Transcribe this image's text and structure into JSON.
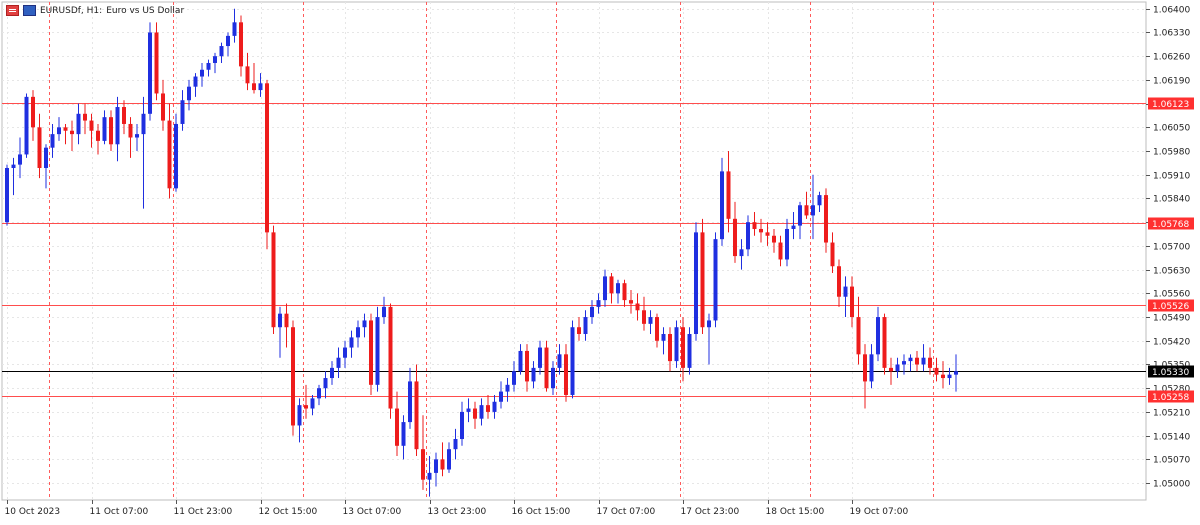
{
  "title": {
    "symbol": "EURUSDf, H1:",
    "description": "Euro vs US Dollar"
  },
  "colors": {
    "bull": "#1f2fe0",
    "bear": "#ee1c1c",
    "doji": "#1ab01a",
    "grid": "#e6e6e6",
    "separator": "#ff5a5a",
    "hline": "#ff4d4d",
    "current": "#000000"
  },
  "chart_data": {
    "type": "candlestick",
    "ylim": [
      1.0495,
      1.0642
    ],
    "y_ticks": [
      "1.06400",
      "1.06330",
      "1.06260",
      "1.06190",
      "1.06120",
      "1.06050",
      "1.05980",
      "1.05910",
      "1.05840",
      "1.05770",
      "1.05700",
      "1.05630",
      "1.05560",
      "1.05490",
      "1.05420",
      "1.05350",
      "1.05280",
      "1.05210",
      "1.05140",
      "1.05070",
      "1.05000"
    ],
    "x_labels": [
      "10 Oct 2023",
      "11 Oct 07:00",
      "11 Oct 23:00",
      "12 Oct 15:00",
      "13 Oct 07:00",
      "13 Oct 23:00",
      "16 Oct 15:00",
      "17 Oct 07:00",
      "17 Oct 23:00",
      "18 Oct 15:00",
      "19 Oct 07:00"
    ],
    "x_label_bars": [
      0,
      13,
      26,
      39,
      52,
      65,
      78,
      91,
      104,
      117,
      130
    ],
    "separator_bars": [
      7,
      26,
      46,
      65,
      85,
      104,
      124,
      143
    ],
    "horizontal_lines": [
      {
        "price": 1.06123,
        "label": "1.06123"
      },
      {
        "price": 1.05768,
        "label": "1.05768"
      },
      {
        "price": 1.05526,
        "label": "1.05526"
      },
      {
        "price": 1.05258,
        "label": "1.05258"
      }
    ],
    "current_price": {
      "price": 1.0533,
      "label": "1.05330"
    },
    "candles": [
      [
        1.0577,
        1.0594,
        1.0576,
        1.0593
      ],
      [
        1.0593,
        1.0596,
        1.0585,
        1.0594
      ],
      [
        1.0594,
        1.0602,
        1.059,
        1.0597
      ],
      [
        1.0597,
        1.0615,
        1.0596,
        1.0614
      ],
      [
        1.0614,
        1.0616,
        1.0601,
        1.0605
      ],
      [
        1.0605,
        1.0609,
        1.059,
        1.0593
      ],
      [
        1.0593,
        1.06,
        1.0587,
        1.0599
      ],
      [
        1.0599,
        1.0606,
        1.0596,
        1.0603
      ],
      [
        1.0603,
        1.0608,
        1.0601,
        1.0605
      ],
      [
        1.0605,
        1.0606,
        1.06,
        1.0604
      ],
      [
        1.0604,
        1.0607,
        1.0598,
        1.0603
      ],
      [
        1.0603,
        1.0612,
        1.06,
        1.0609
      ],
      [
        1.0609,
        1.0612,
        1.0603,
        1.0607
      ],
      [
        1.0607,
        1.0609,
        1.0599,
        1.0604
      ],
      [
        1.0604,
        1.0606,
        1.0597,
        1.0601
      ],
      [
        1.0601,
        1.061,
        1.06,
        1.0608
      ],
      [
        1.0608,
        1.061,
        1.0598,
        1.06
      ],
      [
        1.06,
        1.0614,
        1.0595,
        1.0611
      ],
      [
        1.0611,
        1.0613,
        1.0603,
        1.0606
      ],
      [
        1.0606,
        1.0608,
        1.0596,
        1.0602
      ],
      [
        1.0602,
        1.0606,
        1.0598,
        1.0603
      ],
      [
        1.0603,
        1.0614,
        1.0581,
        1.0609
      ],
      [
        1.0609,
        1.0636,
        1.0607,
        1.0633
      ],
      [
        1.0633,
        1.0636,
        1.0613,
        1.0615
      ],
      [
        1.0615,
        1.0619,
        1.0604,
        1.0607
      ],
      [
        1.0607,
        1.0612,
        1.0584,
        1.0587
      ],
      [
        1.0587,
        1.0609,
        1.0586,
        1.0606
      ],
      [
        1.0606,
        1.0616,
        1.0604,
        1.0613
      ],
      [
        1.0613,
        1.0619,
        1.061,
        1.0617
      ],
      [
        1.0617,
        1.0621,
        1.0614,
        1.062
      ],
      [
        1.062,
        1.0624,
        1.0617,
        1.0622
      ],
      [
        1.0622,
        1.0625,
        1.062,
        1.0624
      ],
      [
        1.0624,
        1.0627,
        1.0621,
        1.0626
      ],
      [
        1.0626,
        1.063,
        1.0624,
        1.0629
      ],
      [
        1.0629,
        1.0633,
        1.0626,
        1.0632
      ],
      [
        1.0632,
        1.064,
        1.063,
        1.0636
      ],
      [
        1.0636,
        1.0638,
        1.062,
        1.0623
      ],
      [
        1.0623,
        1.0627,
        1.0616,
        1.0618
      ],
      [
        1.0618,
        1.0624,
        1.0615,
        1.0616
      ],
      [
        1.0616,
        1.0621,
        1.0614,
        1.0618
      ],
      [
        1.0618,
        1.0619,
        1.0569,
        1.0574
      ],
      [
        1.0574,
        1.0576,
        1.0544,
        1.0546
      ],
      [
        1.0546,
        1.0552,
        1.0537,
        1.055
      ],
      [
        1.055,
        1.0553,
        1.054,
        1.0546
      ],
      [
        1.0546,
        1.0548,
        1.0514,
        1.0517
      ],
      [
        1.0517,
        1.0525,
        1.0512,
        1.0523
      ],
      [
        1.0523,
        1.0529,
        1.0519,
        1.0522
      ],
      [
        1.0522,
        1.0526,
        1.052,
        1.0525
      ],
      [
        1.0525,
        1.0529,
        1.0523,
        1.0528
      ],
      [
        1.0528,
        1.0533,
        1.0525,
        1.0531
      ],
      [
        1.0531,
        1.0536,
        1.0529,
        1.0534
      ],
      [
        1.0534,
        1.054,
        1.0531,
        1.0537
      ],
      [
        1.0537,
        1.0542,
        1.0534,
        1.054
      ],
      [
        1.054,
        1.0545,
        1.0537,
        1.0543
      ],
      [
        1.0543,
        1.0548,
        1.054,
        1.0546
      ],
      [
        1.0546,
        1.055,
        1.0543,
        1.0548
      ],
      [
        1.0548,
        1.055,
        1.0526,
        1.0529
      ],
      [
        1.0529,
        1.0552,
        1.0527,
        1.0549
      ],
      [
        1.0549,
        1.0555,
        1.0547,
        1.0552
      ],
      [
        1.0552,
        1.0553,
        1.0519,
        1.0522
      ],
      [
        1.0522,
        1.0527,
        1.0508,
        1.0511
      ],
      [
        1.0511,
        1.052,
        1.0507,
        1.0518
      ],
      [
        1.0518,
        1.0534,
        1.0516,
        1.053
      ],
      [
        1.053,
        1.0535,
        1.0508,
        1.051
      ],
      [
        1.051,
        1.052,
        1.0498,
        1.0501
      ],
      [
        1.0501,
        1.0508,
        1.0496,
        1.0503
      ],
      [
        1.0503,
        1.0509,
        1.0499,
        1.0507
      ],
      [
        1.0507,
        1.0512,
        1.0502,
        1.0504
      ],
      [
        1.0504,
        1.0512,
        1.0503,
        1.051
      ],
      [
        1.051,
        1.0516,
        1.0507,
        1.0513
      ],
      [
        1.0513,
        1.0524,
        1.0511,
        1.0521
      ],
      [
        1.0521,
        1.0525,
        1.0518,
        1.0522
      ],
      [
        1.0522,
        1.0524,
        1.0516,
        1.0519
      ],
      [
        1.0519,
        1.0525,
        1.0517,
        1.0523
      ],
      [
        1.0523,
        1.0526,
        1.0519,
        1.0521
      ],
      [
        1.0521,
        1.0526,
        1.0519,
        1.0524
      ],
      [
        1.0524,
        1.053,
        1.0522,
        1.0527
      ],
      [
        1.0527,
        1.0531,
        1.0524,
        1.0529
      ],
      [
        1.0529,
        1.0536,
        1.0527,
        1.0533
      ],
      [
        1.0533,
        1.0541,
        1.0532,
        1.0539
      ],
      [
        1.0539,
        1.0541,
        1.0527,
        1.053
      ],
      [
        1.053,
        1.0536,
        1.0528,
        1.0534
      ],
      [
        1.0534,
        1.0542,
        1.0532,
        1.054
      ],
      [
        1.054,
        1.0542,
        1.0527,
        1.0528
      ],
      [
        1.0528,
        1.0536,
        1.0526,
        1.0534
      ],
      [
        1.0534,
        1.0541,
        1.0532,
        1.0538
      ],
      [
        1.0538,
        1.0541,
        1.0524,
        1.0526
      ],
      [
        1.0526,
        1.0548,
        1.0525,
        1.0546
      ],
      [
        1.0546,
        1.0549,
        1.0542,
        1.0544
      ],
      [
        1.0544,
        1.0551,
        1.0542,
        1.0549
      ],
      [
        1.0549,
        1.0554,
        1.0547,
        1.0552
      ],
      [
        1.0552,
        1.0556,
        1.055,
        1.0554
      ],
      [
        1.0554,
        1.0563,
        1.0552,
        1.0561
      ],
      [
        1.0561,
        1.0562,
        1.0553,
        1.0556
      ],
      [
        1.0556,
        1.056,
        1.0553,
        1.0559
      ],
      [
        1.0559,
        1.056,
        1.0552,
        1.0554
      ],
      [
        1.0554,
        1.0557,
        1.055,
        1.0553
      ],
      [
        1.0553,
        1.0556,
        1.0548,
        1.0551
      ],
      [
        1.0551,
        1.0555,
        1.0545,
        1.0547
      ],
      [
        1.0547,
        1.0551,
        1.0544,
        1.0549
      ],
      [
        1.0549,
        1.055,
        1.054,
        1.0542
      ],
      [
        1.0542,
        1.0546,
        1.0538,
        1.0544
      ],
      [
        1.0544,
        1.0546,
        1.0533,
        1.0536
      ],
      [
        1.0536,
        1.0548,
        1.0534,
        1.0546
      ],
      [
        1.0546,
        1.0549,
        1.053,
        1.0534
      ],
      [
        1.0534,
        1.0546,
        1.0532,
        1.0544
      ],
      [
        1.0544,
        1.0577,
        1.0542,
        1.0574
      ],
      [
        1.0574,
        1.0578,
        1.0544,
        1.0546
      ],
      [
        1.0546,
        1.055,
        1.0535,
        1.0548
      ],
      [
        1.0548,
        1.0574,
        1.0546,
        1.0572
      ],
      [
        1.0572,
        1.0596,
        1.057,
        1.0592
      ],
      [
        1.0592,
        1.0598,
        1.0574,
        1.0578
      ],
      [
        1.0578,
        1.0583,
        1.0565,
        1.0567
      ],
      [
        1.0567,
        1.0572,
        1.0563,
        1.0569
      ],
      [
        1.0569,
        1.0579,
        1.0567,
        1.0577
      ],
      [
        1.0577,
        1.058,
        1.0573,
        1.0575
      ],
      [
        1.0575,
        1.0578,
        1.0571,
        1.0574
      ],
      [
        1.0574,
        1.0577,
        1.057,
        1.0573
      ],
      [
        1.0573,
        1.0575,
        1.0568,
        1.0571
      ],
      [
        1.0571,
        1.0573,
        1.0564,
        1.0566
      ],
      [
        1.0566,
        1.0578,
        1.0564,
        1.0575
      ],
      [
        1.0575,
        1.058,
        1.0572,
        1.0576
      ],
      [
        1.0576,
        1.0583,
        1.0572,
        1.0582
      ],
      [
        1.0582,
        1.0586,
        1.0578,
        1.0579
      ],
      [
        1.0579,
        1.0591,
        1.0572,
        1.0582
      ],
      [
        1.0582,
        1.0586,
        1.058,
        1.0585
      ],
      [
        1.0585,
        1.0587,
        1.0568,
        1.0571
      ],
      [
        1.0571,
        1.0574,
        1.0562,
        1.0564
      ],
      [
        1.0564,
        1.0566,
        1.0552,
        1.0555
      ],
      [
        1.0555,
        1.0561,
        1.0549,
        1.0558
      ],
      [
        1.0558,
        1.0561,
        1.0546,
        1.0549
      ],
      [
        1.0549,
        1.0555,
        1.0535,
        1.0538
      ],
      [
        1.0538,
        1.0541,
        1.0522,
        1.053
      ],
      [
        1.053,
        1.0541,
        1.0528,
        1.0538
      ],
      [
        1.0538,
        1.0552,
        1.0536,
        1.0549
      ],
      [
        1.0549,
        1.055,
        1.0532,
        1.0534
      ],
      [
        1.0534,
        1.0537,
        1.0529,
        1.0533
      ],
      [
        1.0533,
        1.0537,
        1.0531,
        1.0535
      ],
      [
        1.0535,
        1.0538,
        1.0532,
        1.0536
      ],
      [
        1.0536,
        1.0538,
        1.0533,
        1.0537
      ],
      [
        1.0537,
        1.0539,
        1.0533,
        1.0535
      ],
      [
        1.0535,
        1.0541,
        1.0533,
        1.0537
      ],
      [
        1.0537,
        1.054,
        1.0532,
        1.0534
      ],
      [
        1.0534,
        1.0537,
        1.053,
        1.0532
      ],
      [
        1.0532,
        1.0536,
        1.0528,
        1.0531
      ],
      [
        1.0531,
        1.0534,
        1.0529,
        1.0532
      ],
      [
        1.0532,
        1.0538,
        1.0527,
        1.0533
      ]
    ]
  }
}
